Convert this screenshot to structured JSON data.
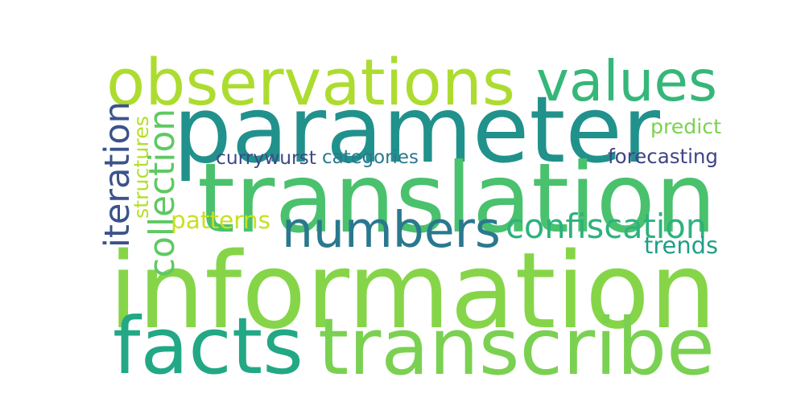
{
  "background_color": "#ffffff",
  "words": [
    {
      "text": "information",
      "color": "#86d549",
      "vertical": false
    },
    {
      "text": "parameter",
      "color": "#21918c",
      "vertical": false
    },
    {
      "text": "translation",
      "color": "#4ac16d",
      "vertical": false
    },
    {
      "text": "transcribe",
      "color": "#7ad151",
      "vertical": false
    },
    {
      "text": "facts",
      "color": "#22a884",
      "vertical": false
    },
    {
      "text": "observations",
      "color": "#addc30",
      "vertical": false
    },
    {
      "text": "values",
      "color": "#35b779",
      "vertical": false
    },
    {
      "text": "numbers",
      "color": "#2a788e",
      "vertical": false
    },
    {
      "text": "confiscation",
      "color": "#2db27d",
      "vertical": false
    },
    {
      "text": "iteration",
      "color": "#3b528b",
      "vertical": true
    },
    {
      "text": "collection",
      "color": "#5ec962",
      "vertical": true
    },
    {
      "text": "structures",
      "color": "#b5de2b",
      "vertical": true
    },
    {
      "text": "patterns",
      "color": "#c8e020",
      "vertical": false
    },
    {
      "text": "predict",
      "color": "#7ad151",
      "vertical": false
    },
    {
      "text": "forecasting",
      "color": "#414487",
      "vertical": false
    },
    {
      "text": "currywurst",
      "color": "#3e4989",
      "vertical": false
    },
    {
      "text": "categories",
      "color": "#2a788e",
      "vertical": false
    },
    {
      "text": "trends",
      "color": "#1f9e89",
      "vertical": false
    }
  ]
}
